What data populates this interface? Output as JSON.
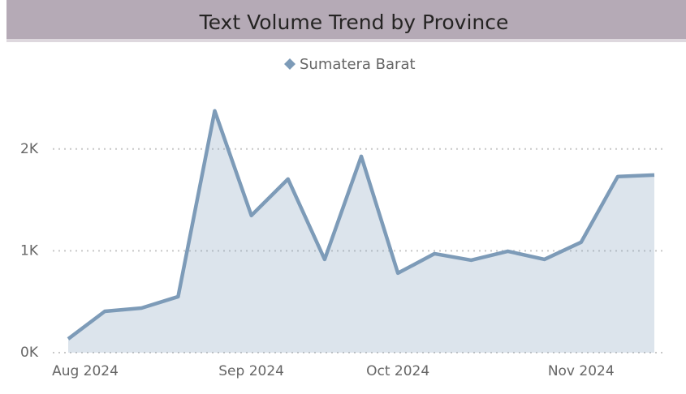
{
  "chart_data": {
    "type": "area",
    "title": "Text Volume Trend by Province",
    "categories": [
      "Aug 2024",
      null,
      null,
      null,
      null,
      "Sep 2024",
      null,
      null,
      null,
      "Oct 2024",
      null,
      null,
      null,
      null,
      "Nov 2024",
      null,
      null
    ],
    "series": [
      {
        "name": "Sumatera Barat",
        "color": "#7d9bb8",
        "values": [
          135,
          406,
          438,
          550,
          2375,
          1347,
          1705,
          916,
          1928,
          781,
          972,
          908,
          996,
          916,
          1084,
          1729,
          1745
        ]
      }
    ],
    "ylim": [
      0,
      2500
    ],
    "yticks": [
      {
        "value": 0,
        "label": "0K"
      },
      {
        "value": 1000,
        "label": "1K"
      },
      {
        "value": 2000,
        "label": "2K"
      }
    ],
    "grid": true,
    "legend": "top"
  }
}
